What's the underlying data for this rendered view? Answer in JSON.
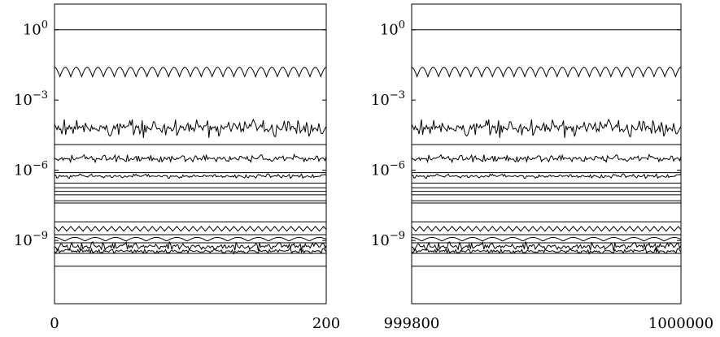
{
  "chart_data": [
    {
      "type": "line",
      "panel": "left",
      "title": "",
      "xlabel": "",
      "ylabel": "",
      "xlim": [
        0,
        200
      ],
      "xticks": [
        0,
        200
      ],
      "xtick_labels": [
        "0",
        "200"
      ],
      "ylim_log10": [
        -11.7,
        1.1
      ],
      "y_scale": "log",
      "yticks_log10": [
        0,
        -3,
        -6,
        -9
      ],
      "ytick_labels": [
        {
          "base": "10",
          "exp": "0"
        },
        {
          "base": "10",
          "exp": "−3"
        },
        {
          "base": "10",
          "exp": "−6"
        },
        {
          "base": "10",
          "exp": "−9"
        }
      ],
      "grid": false,
      "series": [
        {
          "center_log10": 0.0,
          "amp_log10": 0.0,
          "pattern": "flat"
        },
        {
          "center_log10": -1.8,
          "amp_log10": 0.2,
          "pattern": "scallop",
          "period": 8
        },
        {
          "center_log10": -4.2,
          "amp_log10": 0.45,
          "pattern": "noise",
          "period": 2
        },
        {
          "center_log10": -4.9,
          "amp_log10": 0.04,
          "pattern": "flat"
        },
        {
          "center_log10": -5.5,
          "amp_log10": 0.18,
          "pattern": "noise",
          "period": 3
        },
        {
          "center_log10": -6.1,
          "amp_log10": 0.04,
          "pattern": "flat"
        },
        {
          "center_log10": -6.25,
          "amp_log10": 0.1,
          "pattern": "noise",
          "period": 6
        },
        {
          "center_log10": -6.55,
          "amp_log10": 0.02,
          "pattern": "flat"
        },
        {
          "center_log10": -6.75,
          "amp_log10": 0.0,
          "pattern": "flat"
        },
        {
          "center_log10": -6.9,
          "amp_log10": 0.0,
          "pattern": "flat"
        },
        {
          "center_log10": -7.05,
          "amp_log10": 0.0,
          "pattern": "flat"
        },
        {
          "center_log10": -7.3,
          "amp_log10": 0.0,
          "pattern": "flat"
        },
        {
          "center_log10": -7.4,
          "amp_log10": 0.0,
          "pattern": "flat"
        },
        {
          "center_log10": -8.2,
          "amp_log10": 0.0,
          "pattern": "flat"
        },
        {
          "center_log10": -8.5,
          "amp_log10": 0.1,
          "pattern": "zigzag",
          "period": 6
        },
        {
          "center_log10": -8.75,
          "amp_log10": 0.0,
          "pattern": "flat"
        },
        {
          "center_log10": -8.95,
          "amp_log10": 0.08,
          "pattern": "scallop",
          "period": 15
        },
        {
          "center_log10": -9.1,
          "amp_log10": 0.0,
          "pattern": "flat"
        },
        {
          "center_log10": -9.25,
          "amp_log10": 0.2,
          "pattern": "noise",
          "period": 2
        },
        {
          "center_log10": -9.45,
          "amp_log10": 0.12,
          "pattern": "noise",
          "period": 2
        },
        {
          "center_log10": -9.55,
          "amp_log10": 0.0,
          "pattern": "flat"
        },
        {
          "center_log10": -10.1,
          "amp_log10": 0.0,
          "pattern": "flat"
        }
      ]
    },
    {
      "type": "line",
      "panel": "right",
      "title": "",
      "xlabel": "",
      "ylabel": "",
      "xlim": [
        999800,
        1000000
      ],
      "xticks": [
        999800,
        1000000
      ],
      "xtick_labels": [
        "999800",
        "1000000"
      ],
      "ylim_log10": [
        -11.7,
        1.1
      ],
      "y_scale": "log",
      "yticks_log10": [
        0,
        -3,
        -6,
        -9
      ],
      "ytick_labels": [
        {
          "base": "10",
          "exp": "0"
        },
        {
          "base": "10",
          "exp": "−3"
        },
        {
          "base": "10",
          "exp": "−6"
        },
        {
          "base": "10",
          "exp": "−9"
        }
      ],
      "grid": false,
      "series": [
        {
          "center_log10": 0.0,
          "amp_log10": 0.0,
          "pattern": "flat"
        },
        {
          "center_log10": -1.8,
          "amp_log10": 0.2,
          "pattern": "scallop",
          "period": 8
        },
        {
          "center_log10": -4.2,
          "amp_log10": 0.45,
          "pattern": "noise",
          "period": 2
        },
        {
          "center_log10": -4.9,
          "amp_log10": 0.04,
          "pattern": "flat"
        },
        {
          "center_log10": -5.5,
          "amp_log10": 0.18,
          "pattern": "noise",
          "period": 3
        },
        {
          "center_log10": -6.1,
          "amp_log10": 0.04,
          "pattern": "flat"
        },
        {
          "center_log10": -6.25,
          "amp_log10": 0.1,
          "pattern": "noise",
          "period": 6
        },
        {
          "center_log10": -6.55,
          "amp_log10": 0.02,
          "pattern": "flat"
        },
        {
          "center_log10": -6.75,
          "amp_log10": 0.0,
          "pattern": "flat"
        },
        {
          "center_log10": -6.9,
          "amp_log10": 0.0,
          "pattern": "flat"
        },
        {
          "center_log10": -7.05,
          "amp_log10": 0.0,
          "pattern": "flat"
        },
        {
          "center_log10": -7.3,
          "amp_log10": 0.0,
          "pattern": "flat"
        },
        {
          "center_log10": -7.4,
          "amp_log10": 0.0,
          "pattern": "flat"
        },
        {
          "center_log10": -8.2,
          "amp_log10": 0.0,
          "pattern": "flat"
        },
        {
          "center_log10": -8.5,
          "amp_log10": 0.1,
          "pattern": "zigzag",
          "period": 6
        },
        {
          "center_log10": -8.75,
          "amp_log10": 0.0,
          "pattern": "flat"
        },
        {
          "center_log10": -8.95,
          "amp_log10": 0.08,
          "pattern": "scallop",
          "period": 15
        },
        {
          "center_log10": -9.1,
          "amp_log10": 0.0,
          "pattern": "flat"
        },
        {
          "center_log10": -9.25,
          "amp_log10": 0.2,
          "pattern": "noise",
          "period": 2
        },
        {
          "center_log10": -9.45,
          "amp_log10": 0.12,
          "pattern": "noise",
          "period": 2
        },
        {
          "center_log10": -9.55,
          "amp_log10": 0.0,
          "pattern": "flat"
        },
        {
          "center_log10": -10.1,
          "amp_log10": 0.0,
          "pattern": "flat"
        }
      ]
    }
  ]
}
